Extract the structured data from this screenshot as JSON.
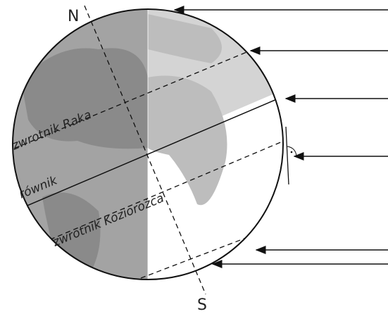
{
  "labels": {
    "north": "N",
    "south": "S",
    "tropic_cancer": "zwrotnik Raka",
    "equator": "równik",
    "tropic_capricorn": "zwrotnik Koziorożca"
  }
}
